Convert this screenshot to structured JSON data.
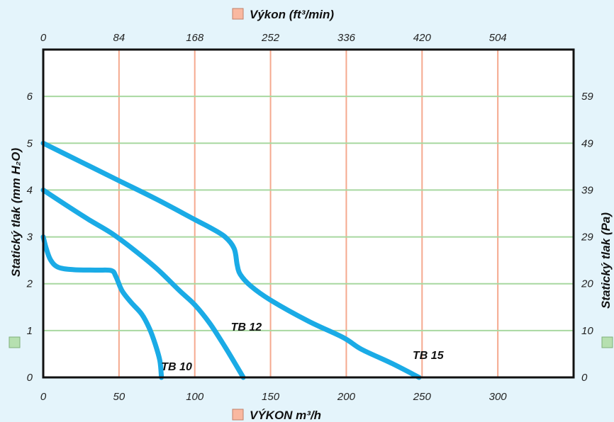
{
  "chart_data": {
    "type": "line",
    "title": "",
    "top_axis": {
      "label": "Výkon (ft³/min)",
      "ticks": [
        "0",
        "84",
        "168",
        "252",
        "336",
        "420",
        "504"
      ],
      "legend_color": "#f9b8a0"
    },
    "bottom_axis": {
      "label": "VÝKON m³/h",
      "ticks": [
        "0",
        "50",
        "100",
        "150",
        "200",
        "250",
        "300"
      ],
      "xlim": [
        0,
        350
      ],
      "legend_color": "#f9b8a0"
    },
    "left_axis": {
      "label": "Statický tlak (mm H₂O)",
      "ticks": [
        "0",
        "1",
        "2",
        "3",
        "4",
        "5",
        "6"
      ],
      "ylim": [
        0,
        7
      ],
      "legend_color": "#b6e0b0"
    },
    "right_axis": {
      "label": "Statický tlak (Pa)",
      "ticks": [
        "0",
        "10",
        "20",
        "29",
        "39",
        "49",
        "59"
      ]
    },
    "grid": {
      "vertical_color": "#f5a98f",
      "horizontal_color": "#a8d8a0"
    },
    "line_color": "#1aabe6",
    "series": [
      {
        "name": "TB 10",
        "points": [
          [
            0,
            3
          ],
          [
            2,
            2.75
          ],
          [
            5,
            2.5
          ],
          [
            10,
            2.35
          ],
          [
            20,
            2.3
          ],
          [
            35,
            2.29
          ],
          [
            45,
            2.28
          ],
          [
            48,
            2.15
          ],
          [
            52,
            1.85
          ],
          [
            58,
            1.6
          ],
          [
            65,
            1.35
          ],
          [
            70,
            1.05
          ],
          [
            74,
            0.7
          ],
          [
            77,
            0.35
          ],
          [
            78,
            0
          ]
        ]
      },
      {
        "name": "TB 12",
        "points": [
          [
            0,
            4
          ],
          [
            15,
            3.68
          ],
          [
            30,
            3.37
          ],
          [
            45,
            3.08
          ],
          [
            60,
            2.72
          ],
          [
            75,
            2.32
          ],
          [
            90,
            1.85
          ],
          [
            100,
            1.55
          ],
          [
            110,
            1.15
          ],
          [
            120,
            0.65
          ],
          [
            128,
            0.22
          ],
          [
            132,
            0
          ]
        ]
      },
      {
        "name": "TB 15",
        "points": [
          [
            0,
            5
          ],
          [
            25,
            4.6
          ],
          [
            50,
            4.2
          ],
          [
            75,
            3.8
          ],
          [
            100,
            3.37
          ],
          [
            110,
            3.2
          ],
          [
            120,
            3.0
          ],
          [
            126,
            2.75
          ],
          [
            128,
            2.4
          ],
          [
            130,
            2.2
          ],
          [
            137,
            1.95
          ],
          [
            150,
            1.65
          ],
          [
            175,
            1.2
          ],
          [
            198,
            0.85
          ],
          [
            210,
            0.6
          ],
          [
            230,
            0.3
          ],
          [
            248,
            0
          ]
        ]
      }
    ],
    "series_labels": [
      {
        "text": "TB 10",
        "x": 88,
        "y": 0.15
      },
      {
        "text": "TB 12",
        "x": 134,
        "y": 1.0
      },
      {
        "text": "TB 15",
        "x": 254,
        "y": 0.39
      }
    ]
  }
}
